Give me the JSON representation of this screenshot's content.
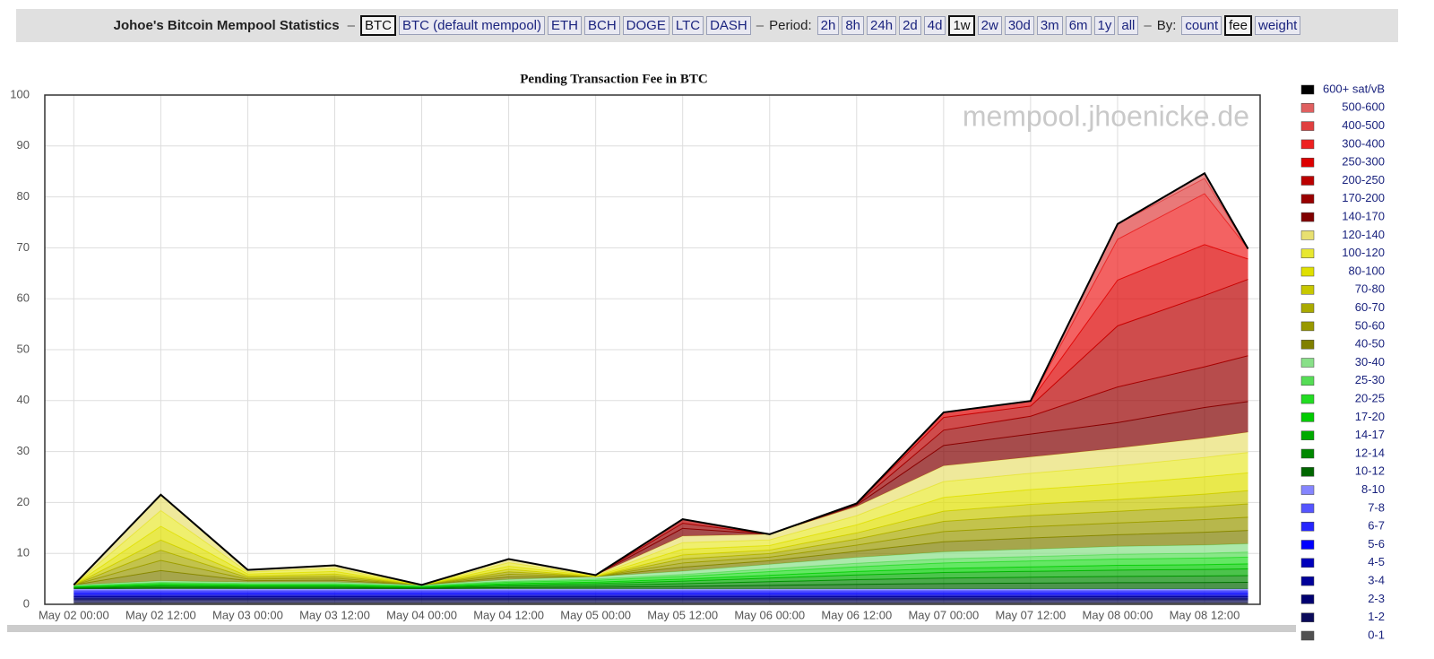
{
  "nav": {
    "title": "Johoe's Bitcoin Mempool Statistics",
    "sep": "–",
    "coins": [
      "BTC",
      "BTC (default mempool)",
      "ETH",
      "BCH",
      "DOGE",
      "LTC",
      "DASH"
    ],
    "period_label": "Period:",
    "periods": [
      "2h",
      "8h",
      "24h",
      "2d",
      "4d",
      "1w",
      "2w",
      "30d",
      "3m",
      "6m",
      "1y",
      "all"
    ],
    "by_label": "By:",
    "by": [
      "count",
      "fee",
      "weight"
    ],
    "selected": {
      "coin": "BTC",
      "period": "1w",
      "by": "fee"
    }
  },
  "chart_data": {
    "type": "stacked_area",
    "title": "Pending Transaction Fee in BTC",
    "watermark": "mempool.jhoenicke.de",
    "x": [
      "May 02 00:00",
      "May 02 12:00",
      "May 03 00:00",
      "May 03 12:00",
      "May 04 00:00",
      "May 04 12:00",
      "May 05 00:00",
      "May 05 12:00",
      "May 06 00:00",
      "May 06 12:00",
      "May 07 00:00",
      "May 07 12:00",
      "May 08 00:00",
      "May 08 12:00",
      "May 08 18:00"
    ],
    "xlim": [
      "May 01 20:00",
      "May 08 19:40"
    ],
    "xticks": [
      "May 02 00:00",
      "May 02 12:00",
      "May 03 00:00",
      "May 03 12:00",
      "May 04 00:00",
      "May 04 12:00",
      "May 05 00:00",
      "May 05 12:00",
      "May 06 00:00",
      "May 06 12:00",
      "May 07 00:00",
      "May 07 12:00",
      "May 08 00:00",
      "May 08 12:00"
    ],
    "ylim": [
      0,
      100
    ],
    "yticks": [
      0,
      10,
      20,
      30,
      40,
      50,
      60,
      70,
      80,
      90,
      100
    ],
    "grid": true,
    "series": [
      {
        "name": "0-1",
        "color": "#505050",
        "values": [
          0.3,
          0.3,
          0.3,
          0.3,
          0.3,
          0.3,
          0.3,
          0.3,
          0.3,
          0.3,
          0.3,
          0.3,
          0.3,
          0.3,
          0.3
        ]
      },
      {
        "name": "1-2",
        "color": "#0b0b5a",
        "values": [
          0.6,
          0.6,
          0.6,
          0.6,
          0.6,
          0.6,
          0.6,
          0.6,
          0.6,
          0.6,
          0.6,
          0.6,
          0.6,
          0.6,
          0.6
        ]
      },
      {
        "name": "2-3",
        "color": "#000070",
        "values": [
          0.3,
          0.3,
          0.3,
          0.3,
          0.3,
          0.3,
          0.3,
          0.3,
          0.3,
          0.3,
          0.3,
          0.3,
          0.3,
          0.3,
          0.3
        ]
      },
      {
        "name": "3-4",
        "color": "#000099",
        "values": [
          0.3,
          0.3,
          0.3,
          0.3,
          0.3,
          0.3,
          0.3,
          0.3,
          0.3,
          0.3,
          0.3,
          0.3,
          0.3,
          0.3,
          0.3
        ]
      },
      {
        "name": "4-5",
        "color": "#0000bb",
        "values": [
          0.3,
          0.3,
          0.3,
          0.3,
          0.3,
          0.3,
          0.3,
          0.3,
          0.3,
          0.3,
          0.3,
          0.3,
          0.3,
          0.3,
          0.3
        ]
      },
      {
        "name": "5-6",
        "color": "#0000ff",
        "values": [
          0.4,
          0.4,
          0.4,
          0.4,
          0.4,
          0.4,
          0.4,
          0.4,
          0.4,
          0.4,
          0.4,
          0.4,
          0.4,
          0.4,
          0.4
        ]
      },
      {
        "name": "6-7",
        "color": "#2525ff",
        "values": [
          0.3,
          0.3,
          0.3,
          0.3,
          0.3,
          0.3,
          0.3,
          0.3,
          0.3,
          0.3,
          0.3,
          0.3,
          0.3,
          0.3,
          0.3
        ]
      },
      {
        "name": "7-8",
        "color": "#5555ff",
        "values": [
          0.2,
          0.2,
          0.2,
          0.2,
          0.2,
          0.2,
          0.2,
          0.2,
          0.2,
          0.2,
          0.2,
          0.2,
          0.2,
          0.2,
          0.2
        ]
      },
      {
        "name": "8-10",
        "color": "#8585ff",
        "values": [
          0.3,
          0.3,
          0.3,
          0.3,
          0.3,
          0.3,
          0.3,
          0.3,
          0.3,
          0.3,
          0.3,
          0.3,
          0.3,
          0.3,
          0.3
        ]
      },
      {
        "name": "10-12",
        "color": "#006600",
        "values": [
          0.12,
          0.24,
          0.2,
          0.2,
          0.12,
          0.28,
          0.36,
          0.52,
          0.72,
          0.92,
          1.08,
          1.16,
          1.24,
          1.28,
          1.32
        ]
      },
      {
        "name": "12-14",
        "color": "#008800",
        "values": [
          0.12,
          0.24,
          0.2,
          0.2,
          0.12,
          0.28,
          0.36,
          0.52,
          0.72,
          0.92,
          1.08,
          1.16,
          1.24,
          1.28,
          1.32
        ]
      },
      {
        "name": "14-17",
        "color": "#00aa00",
        "values": [
          0.12,
          0.24,
          0.2,
          0.2,
          0.12,
          0.28,
          0.36,
          0.52,
          0.72,
          0.92,
          1.08,
          1.16,
          1.24,
          1.28,
          1.32
        ]
      },
      {
        "name": "17-20",
        "color": "#00cc00",
        "values": [
          0.09,
          0.18,
          0.15,
          0.15,
          0.09,
          0.21,
          0.27,
          0.39,
          0.54,
          0.69,
          0.81,
          0.87,
          0.93,
          0.96,
          0.99
        ]
      },
      {
        "name": "20-25",
        "color": "#22dd22",
        "values": [
          0.12,
          0.24,
          0.2,
          0.2,
          0.12,
          0.28,
          0.36,
          0.52,
          0.72,
          0.92,
          1.08,
          1.16,
          1.24,
          1.28,
          1.32
        ]
      },
      {
        "name": "25-30",
        "color": "#55dd55",
        "values": [
          0.09,
          0.18,
          0.15,
          0.15,
          0.09,
          0.21,
          0.27,
          0.39,
          0.54,
          0.69,
          0.81,
          0.87,
          0.93,
          0.96,
          0.99
        ]
      },
      {
        "name": "30-40",
        "color": "#88e088",
        "values": [
          0.15,
          0.3,
          0.25,
          0.25,
          0.15,
          0.35,
          0.45,
          0.65,
          0.9,
          1.15,
          1.35,
          1.45,
          1.55,
          1.6,
          1.65
        ]
      },
      {
        "name": "40-50",
        "color": "#808000",
        "values": [
          0,
          2.0,
          0.3,
          0.4,
          0,
          0.5,
          0,
          0.8,
          0.7,
          1.2,
          2.0,
          2.2,
          2.3,
          2.5,
          2.6
        ]
      },
      {
        "name": "50-60",
        "color": "#999900",
        "values": [
          0,
          2.0,
          0.3,
          0.4,
          0,
          0.5,
          0,
          0.8,
          0.7,
          1.2,
          2.0,
          2.2,
          2.3,
          2.5,
          2.6
        ]
      },
      {
        "name": "60-70",
        "color": "#aaaa00",
        "values": [
          0,
          2.0,
          0.3,
          0.4,
          0,
          0.5,
          0,
          0.8,
          0.7,
          1.2,
          2.0,
          2.2,
          2.3,
          2.5,
          2.6
        ]
      },
      {
        "name": "70-80",
        "color": "#c8c800",
        "values": [
          0,
          2.0,
          0.3,
          0.4,
          0,
          0.5,
          0,
          0.8,
          0.7,
          1.2,
          2.0,
          2.2,
          2.3,
          2.5,
          2.6
        ]
      },
      {
        "name": "80-100",
        "color": "#e0e000",
        "values": [
          0,
          2.7,
          0.4,
          0.5,
          0,
          0.6,
          0.1,
          1.1,
          0.9,
          1.6,
          2.7,
          2.9,
          3.1,
          3.4,
          3.5
        ]
      },
      {
        "name": "100-120",
        "color": "#e8e830",
        "values": [
          0,
          3.1,
          0.4,
          0.6,
          0,
          0.7,
          0.1,
          1.3,
          1.1,
          1.8,
          3.1,
          3.2,
          3.5,
          3.8,
          4.0
        ]
      },
      {
        "name": "120-140",
        "color": "#e8e070",
        "values": [
          0,
          3.1,
          0.4,
          0.6,
          0,
          0.7,
          0.1,
          1.3,
          1.1,
          1.8,
          3.1,
          3.2,
          3.5,
          3.8,
          4.0
        ]
      },
      {
        "name": "140-170",
        "color": "#800000",
        "values": [
          0,
          0,
          0,
          0,
          0,
          0,
          0,
          1.5,
          0,
          0.3,
          4,
          4.5,
          5,
          6,
          6
        ]
      },
      {
        "name": "170-200",
        "color": "#990000",
        "values": [
          0,
          0,
          0,
          0,
          0,
          0,
          0,
          1,
          0,
          0.2,
          3,
          3.5,
          7,
          8,
          9
        ]
      },
      {
        "name": "200-250",
        "color": "#bb0000",
        "values": [
          0,
          0,
          0,
          0,
          0,
          0,
          0,
          0.8,
          0,
          0.1,
          2.5,
          2,
          12,
          14,
          15
        ]
      },
      {
        "name": "250-300",
        "color": "#dd0000",
        "values": [
          0,
          0,
          0,
          0,
          0,
          0,
          0,
          0,
          0,
          0,
          1,
          1,
          9,
          10,
          4
        ]
      },
      {
        "name": "300-400",
        "color": "#ee2020",
        "values": [
          0,
          0,
          0,
          0,
          0,
          0,
          0,
          0,
          0,
          0,
          0,
          0,
          8,
          10,
          2
        ]
      },
      {
        "name": "400-500",
        "color": "#e04040",
        "values": [
          0,
          0,
          0,
          0,
          0,
          0,
          0,
          0,
          0,
          0,
          0,
          0,
          3,
          3,
          0
        ]
      },
      {
        "name": "500-600",
        "color": "#e06060",
        "values": [
          0,
          0,
          0,
          0,
          0,
          0,
          0,
          0,
          0,
          0,
          0,
          0,
          0,
          1,
          0
        ]
      },
      {
        "name": "600+ sat/vB",
        "color": "#000000",
        "values": [
          0,
          0,
          0,
          0,
          0,
          0,
          0,
          0,
          0,
          0,
          0,
          0,
          0,
          0,
          0
        ]
      }
    ]
  }
}
